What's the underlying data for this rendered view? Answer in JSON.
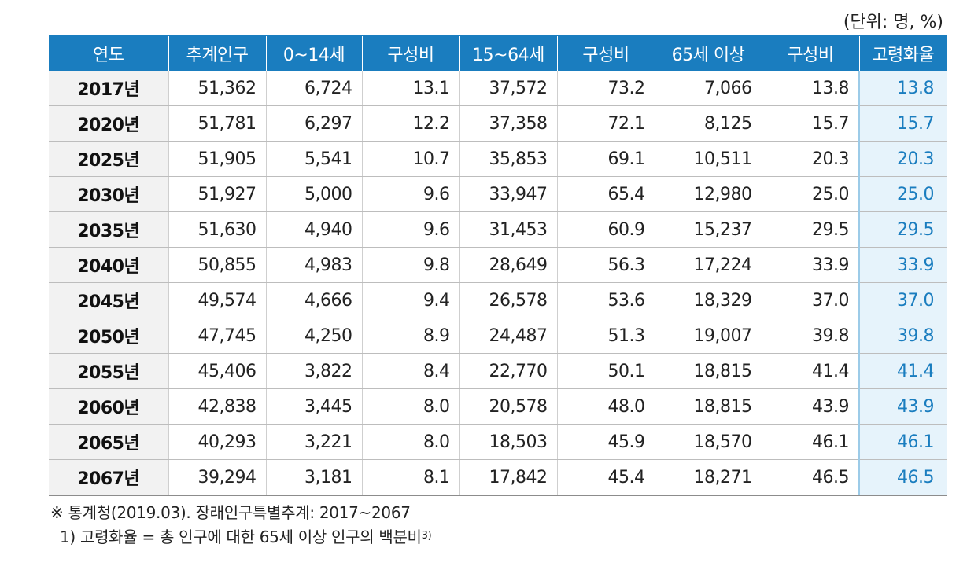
{
  "unit_label": "(단위: 명, %)",
  "headers": [
    "연도",
    "추계인구",
    "0~14세",
    "구성비",
    "15~64세",
    "구성비",
    "65세 이상",
    "구성비",
    "고령화율"
  ],
  "rows": [
    [
      "2017년",
      "51,362",
      "6,724",
      "13.1",
      "37,572",
      "73.2",
      "7,066",
      "13.8",
      "13.8"
    ],
    [
      "2020년",
      "51,781",
      "6,297",
      "12.2",
      "37,358",
      "72.1",
      "8,125",
      "15.7",
      "15.7"
    ],
    [
      "2025년",
      "51,905",
      "5,541",
      "10.7",
      "35,853",
      "69.1",
      "10,511",
      "20.3",
      "20.3"
    ],
    [
      "2030년",
      "51,927",
      "5,000",
      "9.6",
      "33,947",
      "65.4",
      "12,980",
      "25.0",
      "25.0"
    ],
    [
      "2035년",
      "51,630",
      "4,940",
      "9.6",
      "31,453",
      "60.9",
      "15,237",
      "29.5",
      "29.5"
    ],
    [
      "2040년",
      "50,855",
      "4,983",
      "9.8",
      "28,649",
      "56.3",
      "17,224",
      "33.9",
      "33.9"
    ],
    [
      "2045년",
      "49,574",
      "4,666",
      "9.4",
      "26,578",
      "53.6",
      "18,329",
      "37.0",
      "37.0"
    ],
    [
      "2050년",
      "47,745",
      "4,250",
      "8.9",
      "24,487",
      "51.3",
      "19,007",
      "39.8",
      "39.8"
    ],
    [
      "2055년",
      "45,406",
      "3,822",
      "8.4",
      "22,770",
      "50.1",
      "18,815",
      "41.4",
      "41.4"
    ],
    [
      "2060년",
      "42,838",
      "3,445",
      "8.0",
      "20,578",
      "48.0",
      "18,815",
      "43.9",
      "43.9"
    ],
    [
      "2065년",
      "40,293",
      "3,221",
      "8.0",
      "18,503",
      "45.9",
      "18,570",
      "46.1",
      "46.1"
    ],
    [
      "2067년",
      "39,294",
      "3,181",
      "8.1",
      "17,842",
      "45.4",
      "18,271",
      "46.5",
      "46.5"
    ]
  ],
  "notes": {
    "source": "※ 통계청(2019.03). 장래인구특별추계: 2017~2067",
    "footnote": "1) 고령화율 = 총 인구에 대한 65세 이상 인구의 백분비",
    "footnote_ref": "3)"
  },
  "colors": {
    "header_bg": "#1a7dbf",
    "header_text": "#ffffff",
    "ratio_bg": "#e6f3fb",
    "ratio_text": "#1a7dbf",
    "year_bg": "#f2f2f2"
  }
}
